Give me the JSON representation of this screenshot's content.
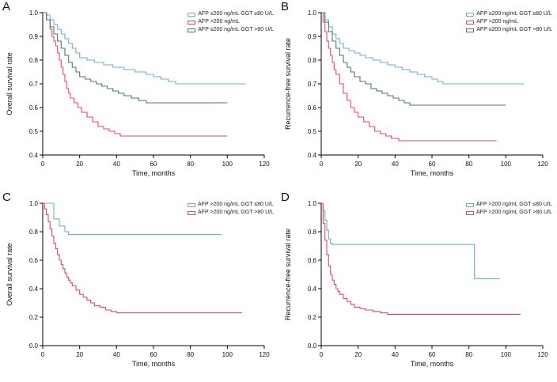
{
  "colors": {
    "blue": "#6BAED6",
    "red": "#E8485C",
    "green": "#4A7C59",
    "axis": "#000000"
  },
  "chart_data": [
    {
      "type": "line",
      "subtype": "kaplan-meier-step",
      "label": "A",
      "ylabel": "Overall survival rate",
      "xlabel": "Time, months",
      "ylim": [
        0.4,
        1.0
      ],
      "yticks": [
        1.0,
        0.9,
        0.8,
        0.7,
        0.6,
        0.5,
        0.4
      ],
      "xlim": [
        0,
        120
      ],
      "xticks": [
        0,
        20,
        40,
        60,
        80,
        100,
        120
      ],
      "grid": false,
      "legend_position": "top-right",
      "series": [
        {
          "name": "AFP ≤200 ng/mL GGT ≤80 U/L",
          "color_key": "blue",
          "points": [
            [
              0,
              1.0
            ],
            [
              2,
              0.99
            ],
            [
              4,
              0.97
            ],
            [
              6,
              0.95
            ],
            [
              8,
              0.93
            ],
            [
              10,
              0.91
            ],
            [
              12,
              0.89
            ],
            [
              14,
              0.87
            ],
            [
              16,
              0.85
            ],
            [
              18,
              0.83
            ],
            [
              20,
              0.81
            ],
            [
              24,
              0.8
            ],
            [
              28,
              0.79
            ],
            [
              33,
              0.78
            ],
            [
              38,
              0.77
            ],
            [
              44,
              0.76
            ],
            [
              50,
              0.75
            ],
            [
              56,
              0.74
            ],
            [
              60,
              0.73
            ],
            [
              64,
              0.72
            ],
            [
              68,
              0.71
            ],
            [
              72,
              0.7
            ],
            [
              110,
              0.7
            ]
          ]
        },
        {
          "name": "AFP >200 ng/mL",
          "color_key": "red",
          "points": [
            [
              0,
              1.0
            ],
            [
              2,
              0.97
            ],
            [
              4,
              0.93
            ],
            [
              5,
              0.9
            ],
            [
              6,
              0.88
            ],
            [
              7,
              0.86
            ],
            [
              8,
              0.83
            ],
            [
              9,
              0.8
            ],
            [
              10,
              0.77
            ],
            [
              11,
              0.74
            ],
            [
              12,
              0.71
            ],
            [
              13,
              0.68
            ],
            [
              14,
              0.66
            ],
            [
              15,
              0.64
            ],
            [
              17,
              0.62
            ],
            [
              19,
              0.6
            ],
            [
              21,
              0.58
            ],
            [
              24,
              0.56
            ],
            [
              27,
              0.54
            ],
            [
              30,
              0.52
            ],
            [
              33,
              0.51
            ],
            [
              36,
              0.5
            ],
            [
              39,
              0.49
            ],
            [
              42,
              0.48
            ],
            [
              100,
              0.48
            ]
          ]
        },
        {
          "name": "AFP ≤200 ng/mL GGT >80 U/L",
          "color_key": "green",
          "points": [
            [
              0,
              1.0
            ],
            [
              2,
              0.97
            ],
            [
              4,
              0.94
            ],
            [
              6,
              0.91
            ],
            [
              8,
              0.88
            ],
            [
              10,
              0.85
            ],
            [
              12,
              0.82
            ],
            [
              14,
              0.79
            ],
            [
              16,
              0.77
            ],
            [
              18,
              0.75
            ],
            [
              20,
              0.73
            ],
            [
              23,
              0.72
            ],
            [
              26,
              0.71
            ],
            [
              29,
              0.7
            ],
            [
              32,
              0.69
            ],
            [
              35,
              0.68
            ],
            [
              38,
              0.67
            ],
            [
              41,
              0.66
            ],
            [
              44,
              0.65
            ],
            [
              48,
              0.64
            ],
            [
              52,
              0.63
            ],
            [
              56,
              0.62
            ],
            [
              100,
              0.62
            ]
          ]
        }
      ]
    },
    {
      "type": "line",
      "subtype": "kaplan-meier-step",
      "label": "B",
      "ylabel": "Recurrence-free survival rate",
      "xlabel": "Time, months",
      "ylim": [
        0.4,
        1.0
      ],
      "yticks": [
        1.0,
        0.9,
        0.8,
        0.7,
        0.6,
        0.5,
        0.4
      ],
      "xlim": [
        0,
        120
      ],
      "xticks": [
        0,
        20,
        40,
        60,
        80,
        100,
        120
      ],
      "grid": false,
      "legend_position": "top-right",
      "series": [
        {
          "name": "AFP ≤200 ng/mL GGT ≤80 U/L",
          "color_key": "blue",
          "points": [
            [
              0,
              1.0
            ],
            [
              2,
              0.97
            ],
            [
              4,
              0.94
            ],
            [
              6,
              0.91
            ],
            [
              8,
              0.89
            ],
            [
              10,
              0.87
            ],
            [
              12,
              0.85
            ],
            [
              15,
              0.84
            ],
            [
              18,
              0.83
            ],
            [
              21,
              0.82
            ],
            [
              24,
              0.81
            ],
            [
              28,
              0.8
            ],
            [
              32,
              0.79
            ],
            [
              36,
              0.78
            ],
            [
              40,
              0.77
            ],
            [
              44,
              0.76
            ],
            [
              48,
              0.75
            ],
            [
              52,
              0.74
            ],
            [
              56,
              0.73
            ],
            [
              60,
              0.72
            ],
            [
              63,
              0.71
            ],
            [
              66,
              0.7
            ],
            [
              110,
              0.7
            ]
          ]
        },
        {
          "name": "AFP >200 ng/mL",
          "color_key": "red",
          "points": [
            [
              0,
              1.0
            ],
            [
              1,
              0.96
            ],
            [
              2,
              0.92
            ],
            [
              3,
              0.88
            ],
            [
              4,
              0.85
            ],
            [
              5,
              0.82
            ],
            [
              6,
              0.79
            ],
            [
              7,
              0.76
            ],
            [
              8,
              0.74
            ],
            [
              10,
              0.7
            ],
            [
              12,
              0.66
            ],
            [
              14,
              0.63
            ],
            [
              16,
              0.6
            ],
            [
              18,
              0.58
            ],
            [
              20,
              0.56
            ],
            [
              23,
              0.54
            ],
            [
              26,
              0.52
            ],
            [
              29,
              0.5
            ],
            [
              32,
              0.49
            ],
            [
              35,
              0.48
            ],
            [
              38,
              0.47
            ],
            [
              42,
              0.46
            ],
            [
              95,
              0.46
            ]
          ]
        },
        {
          "name": "AFP ≤200 ng/mL GGT >80 U/L",
          "color_key": "green",
          "points": [
            [
              0,
              1.0
            ],
            [
              2,
              0.96
            ],
            [
              4,
              0.92
            ],
            [
              6,
              0.88
            ],
            [
              8,
              0.85
            ],
            [
              10,
              0.82
            ],
            [
              12,
              0.79
            ],
            [
              14,
              0.77
            ],
            [
              16,
              0.75
            ],
            [
              18,
              0.73
            ],
            [
              21,
              0.71
            ],
            [
              24,
              0.7
            ],
            [
              27,
              0.68
            ],
            [
              30,
              0.67
            ],
            [
              33,
              0.66
            ],
            [
              36,
              0.65
            ],
            [
              39,
              0.64
            ],
            [
              42,
              0.63
            ],
            [
              45,
              0.62
            ],
            [
              48,
              0.61
            ],
            [
              100,
              0.61
            ]
          ]
        }
      ]
    },
    {
      "type": "line",
      "subtype": "kaplan-meier-step",
      "label": "C",
      "ylabel": "Overall survival rate",
      "xlabel": "Time, months",
      "ylim": [
        0.0,
        1.0
      ],
      "yticks": [
        1.0,
        0.8,
        0.6,
        0.4,
        0.2,
        0.0
      ],
      "xlim": [
        0,
        120
      ],
      "xticks": [
        0,
        20,
        40,
        60,
        80,
        100,
        120
      ],
      "grid": false,
      "legend_position": "top-right",
      "series": [
        {
          "name": "AFP >200 ng/mL GGT ≤80 U/L",
          "color_key": "blue",
          "points": [
            [
              0,
              1.0
            ],
            [
              5,
              1.0
            ],
            [
              6,
              0.89
            ],
            [
              9,
              0.84
            ],
            [
              12,
              0.8
            ],
            [
              14,
              0.78
            ],
            [
              97,
              0.78
            ]
          ]
        },
        {
          "name": "AFP >200 ng/mL GGT >80 U/L",
          "color_key": "red",
          "points": [
            [
              0,
              1.0
            ],
            [
              1,
              0.96
            ],
            [
              2,
              0.92
            ],
            [
              3,
              0.87
            ],
            [
              4,
              0.82
            ],
            [
              5,
              0.77
            ],
            [
              6,
              0.72
            ],
            [
              7,
              0.68
            ],
            [
              8,
              0.64
            ],
            [
              9,
              0.6
            ],
            [
              10,
              0.57
            ],
            [
              11,
              0.54
            ],
            [
              12,
              0.51
            ],
            [
              13,
              0.48
            ],
            [
              14,
              0.46
            ],
            [
              15,
              0.44
            ],
            [
              16,
              0.42
            ],
            [
              18,
              0.39
            ],
            [
              20,
              0.36
            ],
            [
              22,
              0.34
            ],
            [
              24,
              0.32
            ],
            [
              26,
              0.3
            ],
            [
              28,
              0.28
            ],
            [
              31,
              0.27
            ],
            [
              34,
              0.25
            ],
            [
              37,
              0.24
            ],
            [
              40,
              0.23
            ],
            [
              108,
              0.23
            ]
          ]
        }
      ]
    },
    {
      "type": "line",
      "subtype": "kaplan-meier-step",
      "label": "D",
      "ylabel": "Recurrence-free survival rate",
      "xlabel": "Time, months",
      "ylim": [
        0.0,
        1.0
      ],
      "yticks": [
        1.0,
        0.8,
        0.6,
        0.4,
        0.2,
        0.0
      ],
      "xlim": [
        0,
        120
      ],
      "xticks": [
        0,
        20,
        40,
        60,
        80,
        100,
        120
      ],
      "grid": false,
      "legend_position": "top-right",
      "series": [
        {
          "name": "AFP >200 ng/mL GGT ≤80 U/L",
          "color_key": "blue",
          "points": [
            [
              0,
              1.0
            ],
            [
              1,
              0.95
            ],
            [
              2,
              0.88
            ],
            [
              3,
              0.81
            ],
            [
              4,
              0.75
            ],
            [
              5,
              0.72
            ],
            [
              6,
              0.71
            ],
            [
              82,
              0.71
            ],
            [
              83,
              0.47
            ],
            [
              97,
              0.47
            ]
          ]
        },
        {
          "name": "AFP >200 ng/mL GGT >80 U/L",
          "color_key": "red",
          "points": [
            [
              0,
              1.0
            ],
            [
              1,
              0.86
            ],
            [
              2,
              0.74
            ],
            [
              3,
              0.64
            ],
            [
              4,
              0.56
            ],
            [
              5,
              0.5
            ],
            [
              6,
              0.46
            ],
            [
              7,
              0.43
            ],
            [
              8,
              0.4
            ],
            [
              9,
              0.38
            ],
            [
              10,
              0.36
            ],
            [
              12,
              0.33
            ],
            [
              14,
              0.31
            ],
            [
              16,
              0.29
            ],
            [
              18,
              0.27
            ],
            [
              21,
              0.26
            ],
            [
              24,
              0.25
            ],
            [
              28,
              0.24
            ],
            [
              32,
              0.23
            ],
            [
              36,
              0.22
            ],
            [
              108,
              0.22
            ]
          ]
        }
      ]
    }
  ]
}
